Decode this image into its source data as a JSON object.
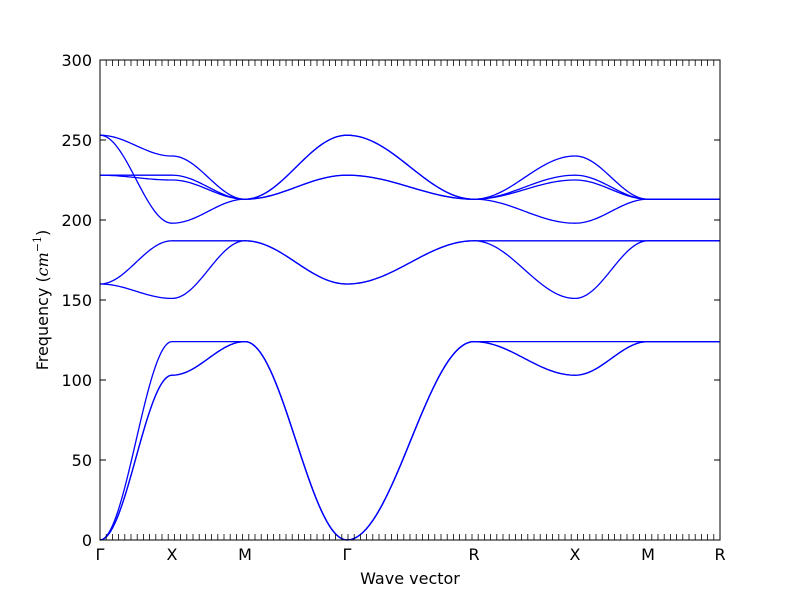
{
  "chart_data": {
    "type": "line",
    "title": "",
    "xlabel": "Wave vector",
    "ylabel_main": "Frequency (",
    "ylabel_unit": "cm",
    "ylabel_exp": "−1",
    "ylabel_close": ")",
    "ylim": [
      0,
      300
    ],
    "yticks": [
      "0",
      "50",
      "100",
      "150",
      "200",
      "250",
      "300"
    ],
    "high_symmetry_labels": [
      "Γ",
      "X",
      "M",
      "Γ",
      "R",
      "X",
      "M",
      "R"
    ],
    "line_color": "#0000ff",
    "grid": false,
    "series": [
      {
        "segment": "Γ-X",
        "x": [
          0,
          1
        ],
        "values": [
          [
            0,
            103
          ],
          [
            0,
            103
          ],
          [
            0,
            124
          ],
          [
            160,
            151
          ],
          [
            160,
            187
          ],
          [
            228,
            228
          ],
          [
            228,
            225
          ],
          [
            253,
            198
          ],
          [
            253,
            240
          ]
        ]
      },
      {
        "segment": "X-M",
        "x": [
          1,
          2
        ],
        "values": [
          [
            103,
            124
          ],
          [
            103,
            124
          ],
          [
            124,
            124
          ],
          [
            151,
            187
          ],
          [
            187,
            187
          ],
          [
            228,
            213
          ],
          [
            225,
            213
          ],
          [
            198,
            213
          ],
          [
            240,
            213
          ]
        ]
      },
      {
        "segment": "M-Γ",
        "x": [
          2,
          3
        ],
        "values": [
          [
            124,
            0
          ],
          [
            124,
            0
          ],
          [
            124,
            0
          ],
          [
            187,
            160
          ],
          [
            187,
            160
          ],
          [
            213,
            228
          ],
          [
            213,
            228
          ],
          [
            213,
            253
          ],
          [
            213,
            253
          ]
        ]
      },
      {
        "segment": "Γ-R",
        "x": [
          3,
          4
        ],
        "values": [
          [
            0,
            124
          ],
          [
            0,
            124
          ],
          [
            0,
            124
          ],
          [
            160,
            187
          ],
          [
            160,
            187
          ],
          [
            228,
            213
          ],
          [
            228,
            213
          ],
          [
            253,
            213
          ],
          [
            253,
            213
          ]
        ]
      },
      {
        "segment": "R-X",
        "x": [
          4,
          5
        ],
        "values": [
          [
            124,
            103
          ],
          [
            124,
            103
          ],
          [
            124,
            124
          ],
          [
            187,
            151
          ],
          [
            187,
            187
          ],
          [
            213,
            228
          ],
          [
            213,
            225
          ],
          [
            213,
            198
          ],
          [
            213,
            240
          ]
        ]
      },
      {
        "segment": "X-M",
        "x": [
          5,
          6
        ],
        "values": [
          [
            103,
            124
          ],
          [
            103,
            124
          ],
          [
            124,
            124
          ],
          [
            151,
            187
          ],
          [
            187,
            187
          ],
          [
            228,
            213
          ],
          [
            225,
            213
          ],
          [
            198,
            213
          ],
          [
            240,
            213
          ]
        ]
      },
      {
        "segment": "M-R",
        "x": [
          6,
          7
        ],
        "values": [
          [
            124,
            124
          ],
          [
            124,
            124
          ],
          [
            124,
            124
          ],
          [
            187,
            187
          ],
          [
            187,
            187
          ],
          [
            213,
            213
          ],
          [
            213,
            213
          ],
          [
            213,
            213
          ],
          [
            213,
            213
          ]
        ]
      }
    ]
  }
}
